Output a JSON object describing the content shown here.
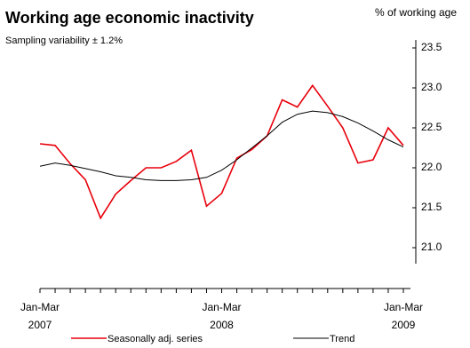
{
  "chart_data": {
    "type": "line",
    "title": "Working age economic inactivity",
    "subtitle": "Sampling variability ± 1.2%",
    "y_label": "% of working age",
    "categories": [
      "Jan-Mar\n2007",
      null,
      null,
      null,
      null,
      null,
      null,
      null,
      null,
      null,
      null,
      null,
      "Jan-Mar\n2008",
      null,
      null,
      null,
      null,
      null,
      null,
      null,
      null,
      null,
      null,
      null,
      "Jan-Mar\n2009"
    ],
    "series": [
      {
        "name": "Seasonally adj. series",
        "color": "#e8000b",
        "values": [
          22.3,
          22.28,
          22.05,
          21.85,
          21.37,
          21.67,
          21.84,
          22.0,
          22.0,
          22.08,
          22.22,
          21.52,
          21.68,
          22.12,
          22.23,
          22.4,
          22.85,
          22.76,
          23.03,
          22.77,
          22.5,
          22.06,
          22.1,
          22.5,
          22.28
        ]
      },
      {
        "name": "Trend",
        "color": "#000000",
        "values": [
          22.02,
          22.06,
          22.03,
          21.99,
          21.95,
          21.9,
          21.88,
          21.85,
          21.84,
          21.84,
          21.85,
          21.88,
          21.97,
          22.1,
          22.25,
          22.4,
          22.57,
          22.67,
          22.71,
          22.69,
          22.64,
          22.56,
          22.46,
          22.35,
          22.26
        ]
      }
    ],
    "ylim": [
      20.8,
      23.6
    ],
    "yticks": [
      {
        "value": 21,
        "label": "21.0"
      },
      21.5,
      {
        "value": 22,
        "label": "22.0"
      },
      22.5,
      {
        "value": 23,
        "label": "23.0"
      },
      23.5
    ],
    "grid": false
  }
}
